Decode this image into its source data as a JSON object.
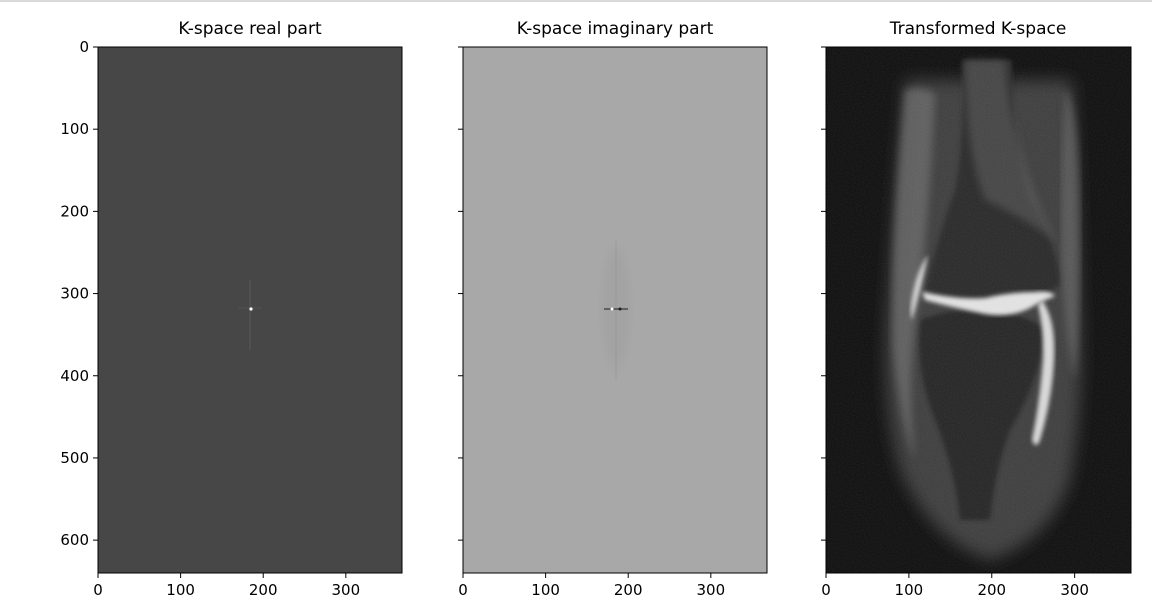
{
  "chart_data": [
    {
      "type": "heatmap",
      "title": "K-space real part",
      "xlim": [
        0,
        368
      ],
      "ylim": [
        640,
        0
      ],
      "xticks": [
        0,
        100,
        200,
        300
      ],
      "yticks": [
        0,
        100,
        200,
        300,
        400,
        500,
        600
      ],
      "y_tick_labels_shown": true,
      "background_gray": "#474747",
      "grid": false,
      "legend": "none"
    },
    {
      "type": "heatmap",
      "title": "K-space imaginary part",
      "xlim": [
        0,
        368
      ],
      "ylim": [
        640,
        0
      ],
      "xticks": [
        0,
        100,
        200,
        300
      ],
      "yticks": [
        0,
        100,
        200,
        300,
        400,
        500,
        600
      ],
      "y_tick_labels_shown": false,
      "background_gray": "#a8a8a8",
      "grid": false,
      "legend": "none"
    },
    {
      "type": "heatmap",
      "title": "Transformed K-space",
      "xlim": [
        0,
        368
      ],
      "ylim": [
        640,
        0
      ],
      "xticks": [
        0,
        100,
        200,
        300
      ],
      "yticks": [
        0,
        100,
        200,
        300,
        400,
        500,
        600
      ],
      "y_tick_labels_shown": false,
      "background_gray": "#0b0b0b",
      "grid": false,
      "legend": "none"
    }
  ]
}
